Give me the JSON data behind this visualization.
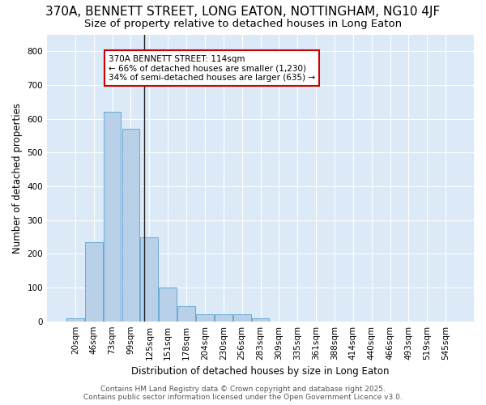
{
  "title": "370A, BENNETT STREET, LONG EATON, NOTTINGHAM, NG10 4JF",
  "subtitle": "Size of property relative to detached houses in Long Eaton",
  "xlabel": "Distribution of detached houses by size in Long Eaton",
  "ylabel": "Number of detached properties",
  "footer_line1": "Contains HM Land Registry data © Crown copyright and database right 2025.",
  "footer_line2": "Contains public sector information licensed under the Open Government Licence v3.0.",
  "categories": [
    "20sqm",
    "46sqm",
    "73sqm",
    "99sqm",
    "125sqm",
    "151sqm",
    "178sqm",
    "204sqm",
    "230sqm",
    "256sqm",
    "283sqm",
    "309sqm",
    "335sqm",
    "361sqm",
    "388sqm",
    "414sqm",
    "440sqm",
    "466sqm",
    "493sqm",
    "519sqm",
    "545sqm"
  ],
  "values": [
    10,
    235,
    620,
    570,
    250,
    100,
    45,
    20,
    20,
    20,
    10,
    0,
    0,
    0,
    0,
    0,
    0,
    0,
    0,
    0,
    0
  ],
  "bar_color": "#b8d0e8",
  "bar_edge_color": "#6aaad4",
  "background_color": "#dce9f7",
  "grid_color": "#ffffff",
  "vline_x": 3.72,
  "vline_color": "#222222",
  "annotation_text": "370A BENNETT STREET: 114sqm\n← 66% of detached houses are smaller (1,230)\n34% of semi-detached houses are larger (635) →",
  "annotation_box_edge_color": "#cc0000",
  "annotation_box_face_color": "#ffffff",
  "ylim": [
    0,
    850
  ],
  "yticks": [
    0,
    100,
    200,
    300,
    400,
    500,
    600,
    700,
    800
  ],
  "title_fontsize": 11,
  "subtitle_fontsize": 9.5,
  "ylabel_fontsize": 8.5,
  "xlabel_fontsize": 8.5,
  "tick_fontsize": 7.5,
  "annotation_fontsize": 7.5,
  "footer_fontsize": 6.5
}
